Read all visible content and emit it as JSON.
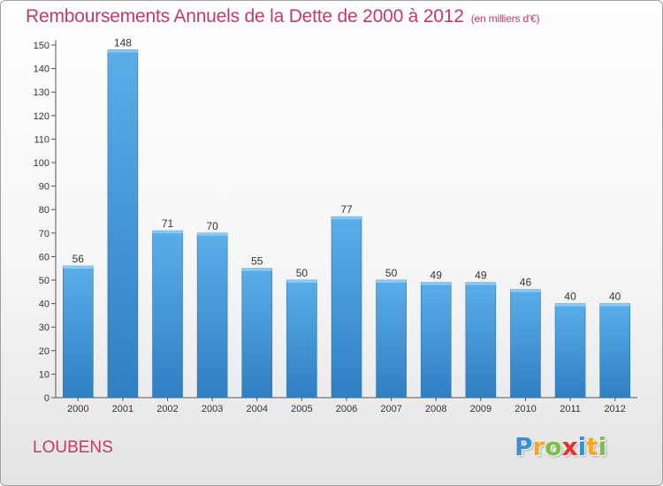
{
  "chart_data": {
    "type": "bar",
    "title": "Remboursements Annuels de la Dette de 2000 à 2012",
    "unit": "(en milliers d'€)",
    "categories": [
      "2000",
      "2001",
      "2002",
      "2003",
      "2004",
      "2005",
      "2006",
      "2007",
      "2008",
      "2009",
      "2010",
      "2011",
      "2012"
    ],
    "values": [
      56,
      148,
      71,
      70,
      55,
      50,
      77,
      50,
      49,
      49,
      46,
      40,
      40
    ],
    "ylim": [
      0,
      150
    ],
    "yticks": [
      0,
      10,
      20,
      30,
      40,
      50,
      60,
      70,
      80,
      90,
      100,
      110,
      120,
      130,
      140,
      150
    ],
    "grid": false,
    "bar_color": "#3a8fd4"
  },
  "location": "LOUBENS",
  "logo": {
    "letters": [
      "P",
      "r",
      "o",
      "x",
      "i",
      "t",
      "i"
    ],
    "colors": [
      "#3a8fd4",
      "#f5a623",
      "#7cc242",
      "#e2362b",
      "#3a8fd4",
      "#f5a623",
      "#7cc242"
    ]
  }
}
